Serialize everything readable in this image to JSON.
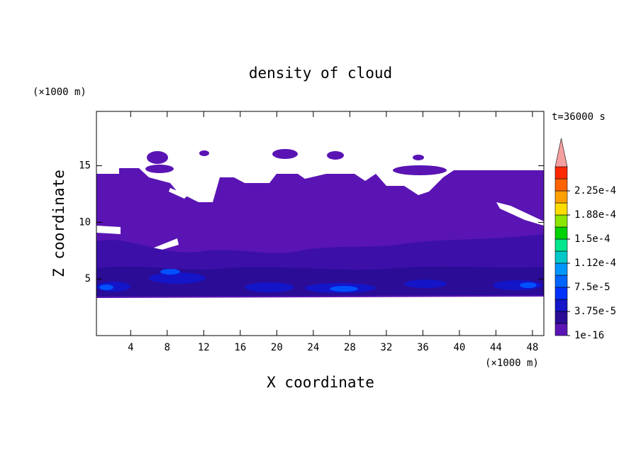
{
  "chart_data": {
    "type": "contour",
    "title": "density of cloud",
    "time_label": "t=36000 s",
    "x_label": "X coordinate",
    "y_label": "Z coordinate",
    "x_unit": "(×1000 m)",
    "y_unit": "(×1000 m)",
    "xlim": [
      0.25,
      49.25
    ],
    "xticks": [
      4,
      8,
      12,
      16,
      20,
      24,
      28,
      32,
      36,
      40,
      44,
      48
    ],
    "ylim": [
      0,
      19.8
    ],
    "yticks": [
      5,
      10,
      15
    ],
    "colorbar": {
      "colors": [
        "#5a14b4",
        "#2a0c96",
        "#1414c8",
        "#0032ff",
        "#0064ff",
        "#0096ff",
        "#00c8c8",
        "#00e68c",
        "#00d200",
        "#8ce600",
        "#ffdc00",
        "#ffa000",
        "#ff6400",
        "#ff2800",
        "#f4a0a0"
      ],
      "ticks": [
        {
          "value": 1e-16,
          "label": "1e-16"
        },
        {
          "value": 3.75e-05,
          "label": "3.75e-5"
        },
        {
          "value": 7.5e-05,
          "label": "7.5e-5"
        },
        {
          "value": 0.000112,
          "label": "1.12e-4"
        },
        {
          "value": 0.00015,
          "label": "1.5e-4"
        },
        {
          "value": 0.000188,
          "label": "1.88e-4"
        },
        {
          "value": 0.000225,
          "label": "2.25e-4"
        }
      ]
    }
  }
}
